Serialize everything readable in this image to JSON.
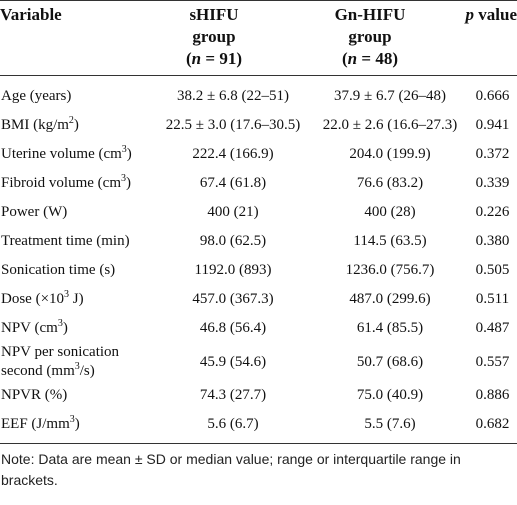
{
  "header": {
    "variable": "Variable",
    "shifu": {
      "name": "sHIFU",
      "line2": "group",
      "open": "(",
      "var": "n",
      "rest": " = 91)"
    },
    "gnhifu": {
      "name": "Gn-HIFU",
      "line2": "group",
      "open": "(",
      "var": "n",
      "rest": " = 48)"
    },
    "p": {
      "var": "p",
      "rest": " value"
    }
  },
  "rows": [
    {
      "variable": {
        "label": "Age (years)"
      },
      "shifu": "38.2 ± 6.8 (22–51)",
      "gnhifu": "37.9 ± 6.7 (26–48)",
      "p": "0.666"
    },
    {
      "variable": {
        "label": "BMI (kg/m",
        "sup": "2",
        "tail": ")"
      },
      "shifu": "22.5 ± 3.0 (17.6–30.5)",
      "gnhifu": "22.0 ± 2.6 (16.6–27.3)",
      "p": "0.941"
    },
    {
      "variable": {
        "label": "Uterine volume (cm",
        "sup": "3",
        "tail": ")"
      },
      "shifu": "222.4 (166.9)",
      "gnhifu": "204.0 (199.9)",
      "p": "0.372"
    },
    {
      "variable": {
        "label": "Fibroid volume (cm",
        "sup": "3",
        "tail": ")"
      },
      "shifu": "67.4 (61.8)",
      "gnhifu": "76.6 (83.2)",
      "p": "0.339"
    },
    {
      "variable": {
        "label": "Power (W)"
      },
      "shifu": "400 (21)",
      "gnhifu": "400 (28)",
      "p": "0.226"
    },
    {
      "variable": {
        "label": "Treatment time (min)"
      },
      "shifu": "98.0 (62.5)",
      "gnhifu": "114.5 (63.5)",
      "p": "0.380"
    },
    {
      "variable": {
        "label": "Sonication time (s)"
      },
      "shifu": "1192.0 (893)",
      "gnhifu": "1236.0 (756.7)",
      "p": "0.505"
    },
    {
      "variable": {
        "label": "Dose (×10",
        "sup": "3",
        "tail": " J)"
      },
      "shifu": "457.0 (367.3)",
      "gnhifu": "487.0 (299.6)",
      "p": "0.511"
    },
    {
      "variable": {
        "label": "NPV (cm",
        "sup": "3",
        "tail": ")"
      },
      "shifu": "46.8 (56.4)",
      "gnhifu": "61.4 (85.5)",
      "p": "0.487"
    },
    {
      "variable": {
        "label": "NPV per sonication second (mm",
        "sup": "3",
        "tail": "/s)"
      },
      "shifu": "45.9 (54.6)",
      "gnhifu": "50.7 (68.6)",
      "p": "0.557"
    },
    {
      "variable": {
        "label": "NPVR (%)"
      },
      "shifu": "74.3 (27.7)",
      "gnhifu": "75.0 (40.9)",
      "p": "0.886"
    },
    {
      "variable": {
        "label": "EEF (J/mm",
        "sup": "3",
        "tail": ")"
      },
      "shifu": "5.6 (6.7)",
      "gnhifu": "5.5 (7.6)",
      "p": "0.682"
    }
  ],
  "note": "Note: Data are mean ± SD or median value; range or interquartile range in brackets."
}
